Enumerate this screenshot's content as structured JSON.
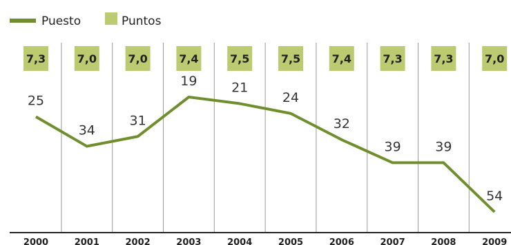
{
  "legend": {
    "line_label": "Puesto",
    "box_label": "Puntos"
  },
  "colors": {
    "line": "#6f8f2e",
    "box": "#bccb6f",
    "grid": "#999999",
    "axis": "#222222"
  },
  "chart_data": {
    "type": "line",
    "categories": [
      "2000",
      "2001",
      "2002",
      "2003",
      "2004",
      "2005",
      "2006",
      "2007",
      "2008",
      "2009"
    ],
    "series": [
      {
        "name": "Puesto",
        "values": [
          25,
          34,
          31,
          19,
          21,
          24,
          32,
          39,
          39,
          54
        ]
      },
      {
        "name": "Puntos",
        "values": [
          "7,3",
          "7,0",
          "7,0",
          "7,4",
          "7,5",
          "7,5",
          "7,4",
          "7,3",
          "7,3",
          "7,0"
        ]
      }
    ],
    "y_axis": {
      "inverted": true
    },
    "grid": "vertical separators",
    "legend_position": "top-left"
  }
}
